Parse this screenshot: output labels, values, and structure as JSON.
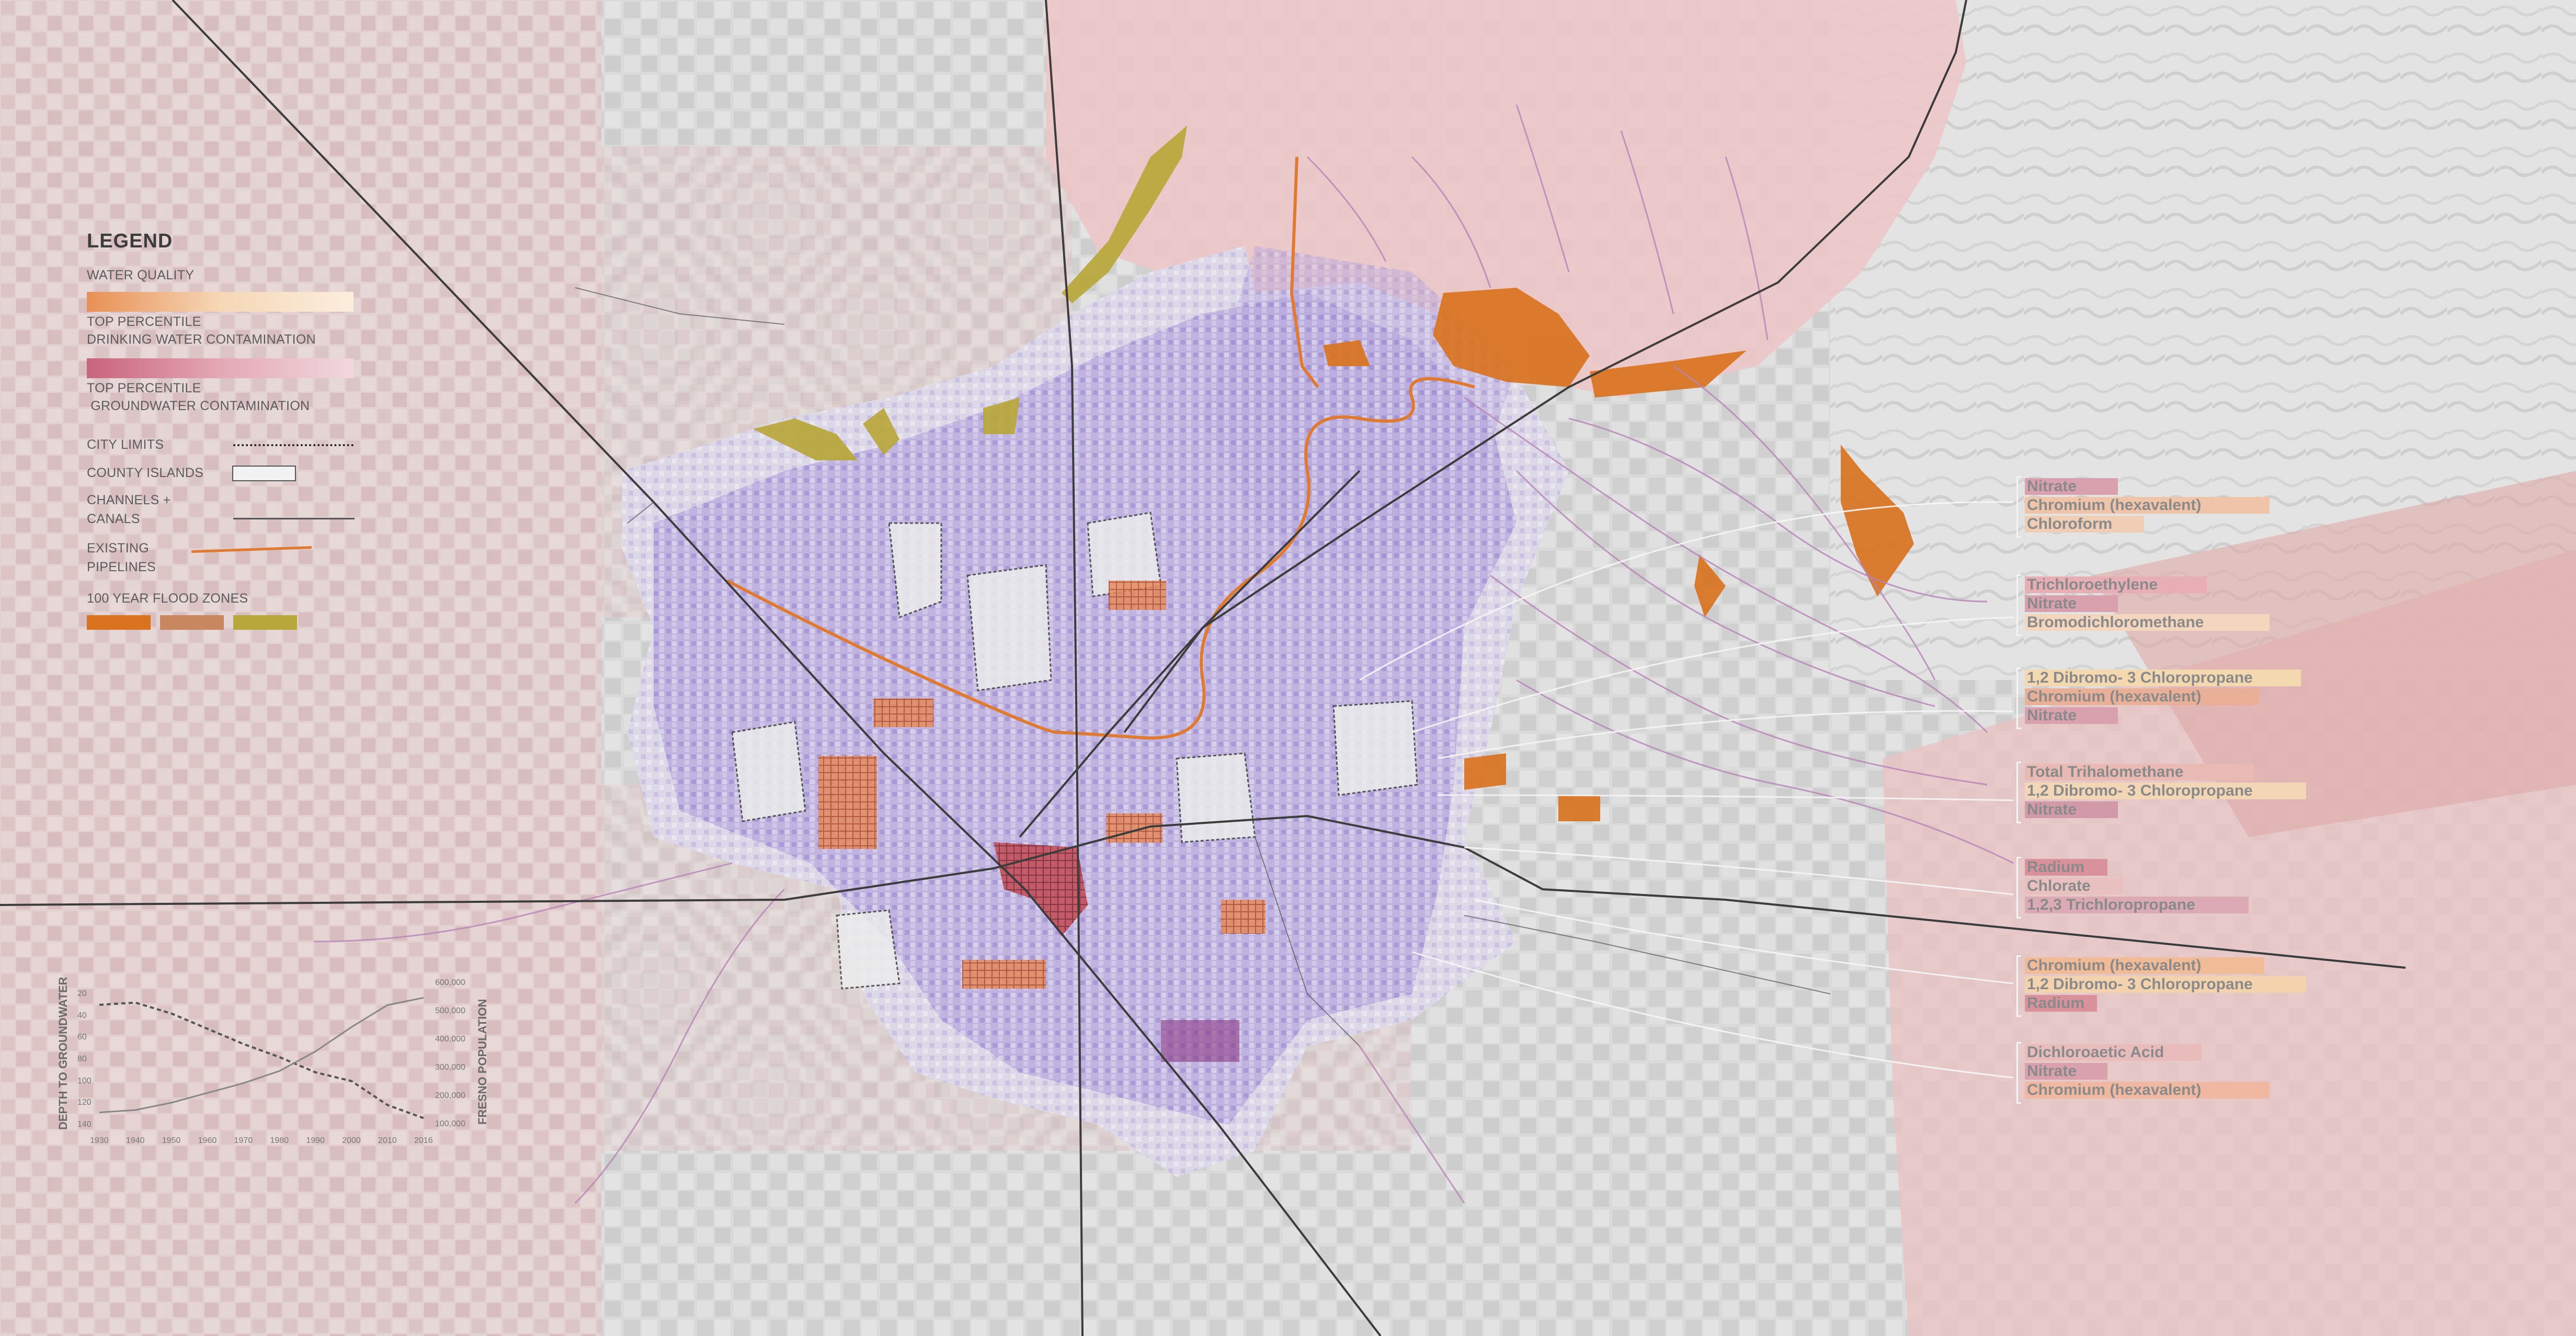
{
  "legend": {
    "title": "LEGEND",
    "water_quality": "WATER QUALITY",
    "drinking_water": "TOP PERCENTILE\nDRINKING WATER CONTAMINATION",
    "groundwater": "TOP PERCENTILE\n GROUNDWATER CONTAMINATION",
    "city_limits": "CITY LIMITS",
    "county_islands": "COUNTY ISLANDS",
    "channels": "CHANNELS +\nCANALS",
    "pipelines": "EXISTING\nPIPELINES",
    "flood_zones": "100 YEAR FLOOD ZONES",
    "colors": {
      "drinking_water": "#e9a05a",
      "groundwater": "#d9778b",
      "pipeline": "#e07a30",
      "flood_1": "#d9731f",
      "flood_2": "#c9875f",
      "flood_3": "#b8a73a"
    }
  },
  "contaminant_groups": [
    {
      "items": [
        {
          "text": "Nitrate",
          "color": "#d9a0ae"
        },
        {
          "text": "Chromium (hexavalent)",
          "color": "#f0c4a8"
        },
        {
          "text": "Chloroform",
          "color": "#f0cdb5"
        }
      ]
    },
    {
      "items": [
        {
          "text": "Trichloroethylene",
          "color": "#e7aeb6"
        },
        {
          "text": "Nitrate",
          "color": "#d9a0ae"
        },
        {
          "text": "Bromodichloromethane",
          "color": "#f3d6bd"
        }
      ]
    },
    {
      "items": [
        {
          "text": "1,2 Dibromo- 3 Chloropropane",
          "color": "#f4d8b0"
        },
        {
          "text": "Chromium (hexavalent)",
          "color": "#eab097"
        },
        {
          "text": "Nitrate",
          "color": "#d9a0ae"
        }
      ]
    },
    {
      "items": [
        {
          "text": "Total Trihalomethane",
          "color": "#e9b9b4"
        },
        {
          "text": "1,2 Dibromo- 3 Chloropropane",
          "color": "#f3d6b5"
        },
        {
          "text": "Nitrate",
          "color": "#d29aa8"
        }
      ]
    },
    {
      "items": [
        {
          "text": "Radium",
          "color": "#d9919c"
        },
        {
          "text": "Chlorate",
          "color": "#e9c0c0"
        },
        {
          "text": "1,2,3 Trichloropropane",
          "color": "#dbaab4"
        }
      ]
    },
    {
      "items": [
        {
          "text": "Chromium (hexavalent)",
          "color": "#f0bb96"
        },
        {
          "text": "1,2 Dibromo- 3 Chloropropane",
          "color": "#f3d2ae"
        },
        {
          "text": "Radium",
          "color": "#d9919c"
        }
      ]
    },
    {
      "items": [
        {
          "text": "Dichloroaetic Acid",
          "color": "#e9bcbc"
        },
        {
          "text": "Nitrate",
          "color": "#d9a0ae"
        },
        {
          "text": "Chromium (hexavalent)",
          "color": "#f0b8a0"
        }
      ]
    }
  ],
  "graph": {
    "left_title": "DEPTH TO GROUNDWATER",
    "right_title": "FRESNO POPULATION",
    "left_ticks": [
      "20",
      "40",
      "60",
      "80",
      "100",
      "120",
      "140"
    ],
    "right_ticks": [
      "600,000",
      "500,000",
      "400,000",
      "300,000",
      "200,000",
      "100,000"
    ],
    "x_ticks": [
      "1930",
      "1940",
      "1950",
      "1960",
      "1970",
      "1980",
      "1990",
      "2000",
      "2010",
      "2016"
    ],
    "depth_series": [
      30,
      28,
      38,
      52,
      66,
      78,
      92,
      100,
      122,
      134
    ],
    "population_series": [
      50000,
      60000,
      90000,
      130000,
      170000,
      220000,
      300000,
      400000,
      490000,
      520000
    ]
  }
}
